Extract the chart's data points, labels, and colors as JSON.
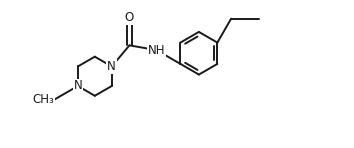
{
  "bg_color": "#ffffff",
  "line_color": "#1a1a1a",
  "line_width": 1.4,
  "font_size": 8.5,
  "font_color": "#1a1a1a",
  "xlim": [
    -0.5,
    6.2
  ],
  "ylim": [
    -0.5,
    2.8
  ],
  "figsize": [
    3.54,
    1.48
  ],
  "dpi": 100
}
